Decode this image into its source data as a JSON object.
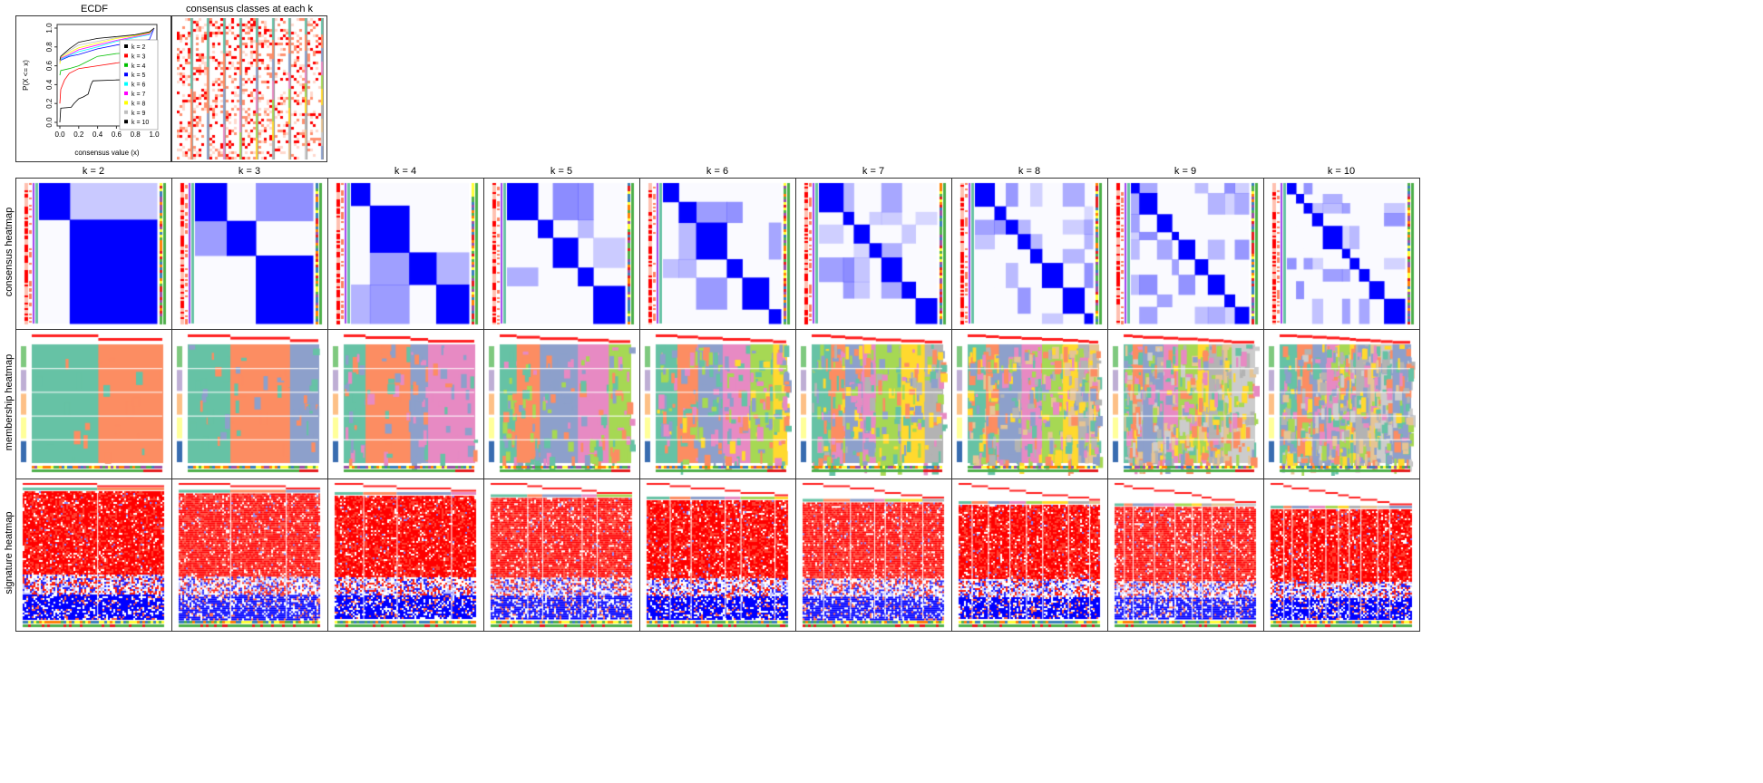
{
  "chart_data": [
    {
      "type": "line",
      "title": "ECDF",
      "xlabel": "consensus value (x)",
      "ylabel": "P(X <= x)",
      "xlim": [
        0,
        1
      ],
      "ylim": [
        0,
        1
      ],
      "xticks": [
        "0.0",
        "0.2",
        "0.4",
        "0.6",
        "0.8",
        "1.0"
      ],
      "yticks": [
        "0.0",
        "0.2",
        "0.4",
        "0.6",
        "0.8",
        "1.0"
      ],
      "legend_position": "right",
      "series": [
        {
          "name": "k = 2",
          "color": "#000000",
          "x": [
            0,
            0.01,
            0.12,
            0.15,
            0.2,
            0.25,
            0.3,
            0.33,
            0.35,
            0.6,
            1.0
          ],
          "y": [
            0,
            0.15,
            0.16,
            0.2,
            0.25,
            0.27,
            0.3,
            0.4,
            0.44,
            0.45,
            0.46
          ]
        },
        {
          "name": "k = 3",
          "color": "#FF0000",
          "x": [
            0,
            0.01,
            0.05,
            0.1,
            0.2,
            0.4,
            0.6,
            0.8,
            1.0
          ],
          "y": [
            0.2,
            0.35,
            0.45,
            0.52,
            0.57,
            0.6,
            0.63,
            0.66,
            0.7
          ]
        },
        {
          "name": "k = 4",
          "color": "#00C000",
          "x": [
            0,
            0.01,
            0.1,
            0.2,
            0.3,
            0.4,
            0.6,
            0.8,
            1.0
          ],
          "y": [
            0.5,
            0.55,
            0.57,
            0.6,
            0.65,
            0.7,
            0.73,
            0.74,
            0.75
          ]
        },
        {
          "name": "k = 5",
          "color": "#0000FF",
          "x": [
            0,
            0.01,
            0.1,
            0.2,
            0.4,
            0.6,
            0.8,
            0.95,
            1.0
          ],
          "y": [
            0.64,
            0.66,
            0.7,
            0.72,
            0.78,
            0.82,
            0.85,
            0.88,
            1.0
          ]
        },
        {
          "name": "k = 6",
          "color": "#00FFFF",
          "x": [
            0,
            0.01,
            0.1,
            0.2,
            0.4,
            0.6,
            0.8,
            0.95,
            1.0
          ],
          "y": [
            0.64,
            0.67,
            0.71,
            0.75,
            0.8,
            0.86,
            0.9,
            0.93,
            1.0
          ]
        },
        {
          "name": "k = 7",
          "color": "#FF00FF",
          "x": [
            0,
            0.01,
            0.1,
            0.2,
            0.4,
            0.6,
            0.8,
            0.95,
            1.0
          ],
          "y": [
            0.64,
            0.68,
            0.72,
            0.77,
            0.82,
            0.87,
            0.91,
            0.94,
            1.0
          ]
        },
        {
          "name": "k = 8",
          "color": "#FFFF00",
          "x": [
            0,
            0.01,
            0.1,
            0.2,
            0.4,
            0.6,
            0.8,
            0.95,
            1.0
          ],
          "y": [
            0.62,
            0.69,
            0.74,
            0.79,
            0.84,
            0.89,
            0.92,
            0.95,
            1.0
          ]
        },
        {
          "name": "k = 9",
          "color": "#BEBEBE",
          "x": [
            0,
            0.01,
            0.1,
            0.2,
            0.4,
            0.6,
            0.8,
            0.95,
            1.0
          ],
          "y": [
            0.65,
            0.7,
            0.76,
            0.82,
            0.86,
            0.9,
            0.93,
            0.96,
            1.0
          ]
        },
        {
          "name": "k = 10",
          "color": "#000000",
          "x": [
            0,
            0.01,
            0.1,
            0.2,
            0.4,
            0.6,
            0.8,
            0.95,
            1.0
          ],
          "y": [
            0.66,
            0.7,
            0.78,
            0.85,
            0.89,
            0.91,
            0.93,
            0.96,
            1.0
          ]
        }
      ]
    },
    {
      "type": "heatmap",
      "title": "consensus classes at each k"
    },
    {
      "type": "heatmap",
      "row_labels": [
        "consensus heatmap",
        "membership heatmap",
        "signature heatmap"
      ],
      "column_labels": [
        "k = 2",
        "k = 3",
        "k = 4",
        "k = 5",
        "k = 6",
        "k = 7",
        "k = 8",
        "k = 9",
        "k = 10"
      ],
      "k": [
        2,
        3,
        4,
        5,
        6,
        7,
        8,
        9,
        10
      ],
      "class_colors": [
        "#66C2A5",
        "#FC8D62",
        "#8DA0CB",
        "#E78AC3",
        "#A6D854",
        "#FFD92F",
        "#B3B3B3",
        "#E5C494",
        "#CCCCCC",
        "#8DA0CB"
      ],
      "consensus_color": "#0000FF",
      "signature_colors": [
        "#0000FF",
        "#FFFFFF",
        "#FF0000"
      ]
    }
  ]
}
